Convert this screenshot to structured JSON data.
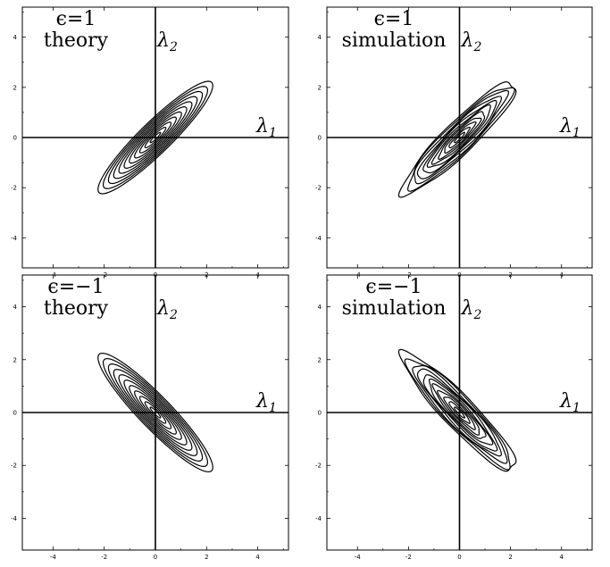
{
  "panels": [
    {
      "id": "top-left",
      "epsilon_label": "ϵ=1",
      "mode_label": "theory",
      "epsilon": 1,
      "jitter": 0
    },
    {
      "id": "top-right",
      "epsilon_label": "ϵ=1",
      "mode_label": "simulation",
      "epsilon": 1,
      "jitter": 1
    },
    {
      "id": "bottom-left",
      "epsilon_label": "ϵ=−1",
      "mode_label": "theory",
      "epsilon": -1,
      "jitter": 0
    },
    {
      "id": "bottom-right",
      "epsilon_label": "ϵ=−1",
      "mode_label": "simulation",
      "epsilon": -1,
      "jitter": 1
    }
  ],
  "axes": {
    "x_label_main": "λ",
    "x_label_sub": "1",
    "y_label_main": "λ",
    "y_label_sub": "2",
    "x_ticks": [
      "-4",
      "-2",
      "0",
      "2",
      "4"
    ],
    "y_ticks": [
      "4",
      "2",
      "0",
      "-2",
      "-4"
    ],
    "range": [
      -5.2,
      5.2
    ]
  },
  "contours": {
    "levels": 11,
    "outer_extent": 2.2
  }
}
